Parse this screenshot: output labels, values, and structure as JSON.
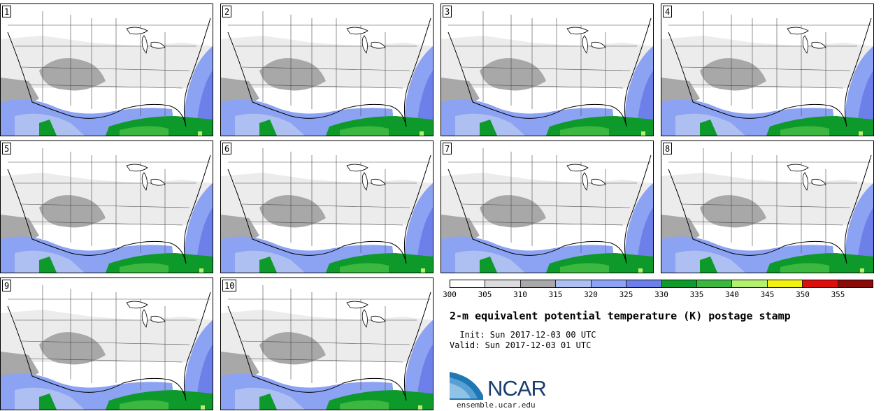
{
  "panels": [
    {
      "number": "1"
    },
    {
      "number": "2"
    },
    {
      "number": "3"
    },
    {
      "number": "4"
    },
    {
      "number": "5"
    },
    {
      "number": "6"
    },
    {
      "number": "7"
    },
    {
      "number": "8"
    },
    {
      "number": "9"
    },
    {
      "number": "10"
    }
  ],
  "colorbar": {
    "labels": [
      "300",
      "305",
      "310",
      "315",
      "320",
      "325",
      "330",
      "335",
      "340",
      "345",
      "350",
      "355"
    ],
    "colors": [
      "#ffffff",
      "#dcdcdc",
      "#a8a8a8",
      "#aebff2",
      "#8ca2f2",
      "#6d7fe8",
      "#0e9a2a",
      "#3cb840",
      "#b5ef6e",
      "#f2f20e",
      "#dc0e0e",
      "#8a0a0a"
    ]
  },
  "title": "2-m equivalent potential temperature (K) postage stamp",
  "init_line": "  Init: Sun 2017-12-03 00 UTC",
  "valid_line": "Valid: Sun 2017-12-03 01 UTC",
  "logo_text": "NCAR",
  "site": "ensemble.ucar.edu"
}
